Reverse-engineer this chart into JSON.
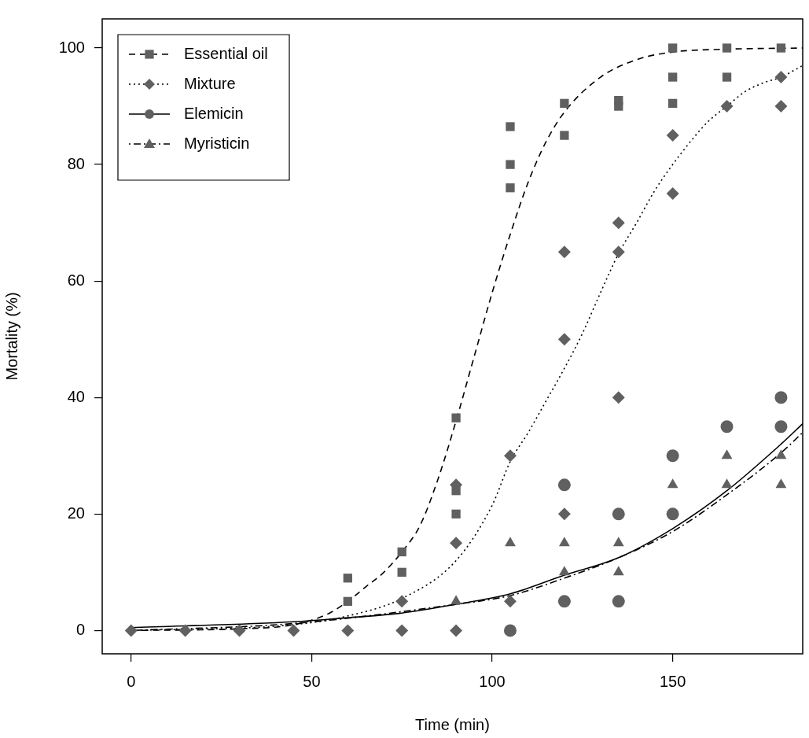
{
  "chart_data": {
    "type": "scatter",
    "xlabel": "Time (min)",
    "ylabel": "Mortality (%)",
    "xlim": [
      -8,
      186
    ],
    "ylim": [
      -4,
      105
    ],
    "xticks": [
      0,
      50,
      100,
      150
    ],
    "yticks": [
      0,
      20,
      40,
      60,
      80,
      100
    ],
    "grid": false,
    "legend": "top left",
    "series": [
      {
        "name": "Essential oil",
        "marker": "square",
        "color": "#606060",
        "x": [
          60,
          60,
          75,
          75,
          90,
          90,
          90,
          105,
          105,
          105,
          120,
          120,
          135,
          135,
          150,
          150,
          150,
          165,
          165,
          180
        ],
        "values": [
          9,
          5,
          10,
          13.5,
          36.5,
          24,
          20,
          86.5,
          80,
          76,
          90.5,
          85,
          91,
          90,
          100,
          95,
          90.5,
          100,
          95,
          100
        ]
      },
      {
        "name": "Mixture",
        "marker": "diamond",
        "color": "#606060",
        "x": [
          0,
          15,
          30,
          45,
          60,
          75,
          75,
          90,
          90,
          90,
          105,
          105,
          120,
          120,
          120,
          135,
          135,
          135,
          150,
          150,
          165,
          180,
          180
        ],
        "values": [
          0,
          0,
          0,
          0,
          0,
          0,
          5,
          0,
          15,
          25,
          5,
          30,
          65,
          50,
          20,
          70,
          65,
          40,
          75,
          85,
          90,
          95,
          90
        ]
      },
      {
        "name": "Elemicin",
        "marker": "circle",
        "color": "#606060",
        "x": [
          105,
          120,
          120,
          135,
          135,
          150,
          150,
          165,
          180,
          180
        ],
        "values": [
          0,
          25,
          5,
          20,
          5,
          30,
          20,
          35,
          40,
          35
        ]
      },
      {
        "name": "Myristicin",
        "marker": "triangle",
        "color": "#606060",
        "x": [
          90,
          105,
          120,
          120,
          135,
          135,
          150,
          165,
          165,
          180,
          180
        ],
        "values": [
          5,
          15,
          15,
          10,
          15,
          10,
          25,
          30,
          25,
          30,
          25
        ]
      },
      {
        "type": "line",
        "line_style": "dashed",
        "color": "#000000",
        "x": [
          0,
          30,
          45,
          55,
          60,
          65,
          70,
          75,
          80,
          85,
          90,
          95,
          100,
          105,
          110,
          115,
          120,
          130,
          140,
          150,
          165,
          186
        ],
        "values": [
          0,
          0.3,
          1,
          3,
          5,
          7.5,
          10,
          13.5,
          18,
          26,
          36,
          47,
          58,
          68,
          77,
          84,
          89,
          95,
          98,
          99.3,
          99.8,
          100
        ]
      },
      {
        "type": "line",
        "line_style": "dotted",
        "color": "#000000",
        "x": [
          0,
          45,
          60,
          75,
          90,
          100,
          105,
          110,
          115,
          120,
          125,
          130,
          135,
          140,
          145,
          150,
          155,
          160,
          165,
          170,
          175,
          180,
          186
        ],
        "values": [
          0,
          1,
          2.5,
          5.5,
          12,
          21.5,
          29,
          34,
          39.5,
          45,
          51,
          58,
          64.7,
          70,
          75.5,
          80,
          84,
          87.5,
          90,
          92.5,
          94,
          95,
          97
        ]
      },
      {
        "type": "line",
        "line_style": "solid",
        "color": "#000000",
        "x": [
          0,
          45,
          60,
          75,
          90,
          105,
          120,
          135,
          150,
          165,
          180,
          186
        ],
        "values": [
          0.5,
          1.5,
          2.2,
          3,
          4.5,
          6.3,
          9.5,
          12.5,
          17.5,
          24,
          32,
          35.5
        ]
      },
      {
        "type": "line",
        "line_style": "dashdot",
        "color": "#000000",
        "x": [
          0,
          45,
          90,
          105,
          120,
          135,
          150,
          165,
          180,
          186
        ],
        "values": [
          0,
          1.2,
          4.5,
          6,
          9,
          12.5,
          17,
          23.3,
          30.5,
          34
        ]
      }
    ]
  }
}
